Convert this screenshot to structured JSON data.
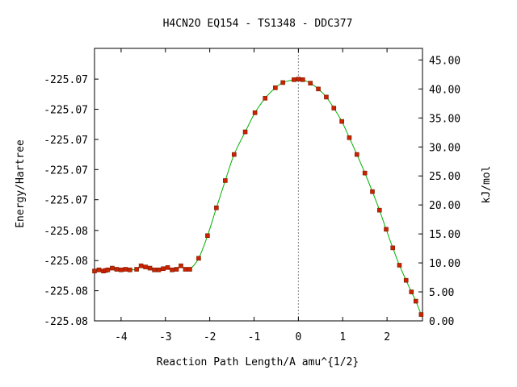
{
  "chart_data": {
    "type": "line",
    "title": "H4CN2O   EQ154 - TS1348 - DDC377",
    "xlabel": "Reaction Path Length/A amu^{1/2}",
    "ylabel_left": "Energy/Hartree",
    "ylabel_right": "kJ/mol",
    "xlim": [
      -4.6,
      2.8
    ],
    "ylim_kj": [
      0,
      47
    ],
    "x_ticks": [
      {
        "value": -4,
        "label": "-4"
      },
      {
        "value": -3,
        "label": "-3"
      },
      {
        "value": -2,
        "label": "-2"
      },
      {
        "value": -1,
        "label": "-1"
      },
      {
        "value": 0,
        "label": "0"
      },
      {
        "value": 1,
        "label": "1"
      },
      {
        "value": 2,
        "label": "2"
      }
    ],
    "left_ticks": [
      {
        "kj": 0.0,
        "label": "-225.08"
      },
      {
        "kj": 5.2,
        "label": "-225.08"
      },
      {
        "kj": 10.4,
        "label": "-225.08"
      },
      {
        "kj": 15.6,
        "label": "-225.08"
      },
      {
        "kj": 20.9,
        "label": "-225.07"
      },
      {
        "kj": 26.1,
        "label": "-225.07"
      },
      {
        "kj": 31.3,
        "label": "-225.07"
      },
      {
        "kj": 36.5,
        "label": "-225.07"
      },
      {
        "kj": 41.7,
        "label": "-225.07"
      }
    ],
    "right_ticks": [
      {
        "kj": 0,
        "label": "0.00"
      },
      {
        "kj": 5,
        "label": "5.00"
      },
      {
        "kj": 10,
        "label": "10.00"
      },
      {
        "kj": 15,
        "label": "15.00"
      },
      {
        "kj": 20,
        "label": "20.00"
      },
      {
        "kj": 25,
        "label": "25.00"
      },
      {
        "kj": 30,
        "label": "30.00"
      },
      {
        "kj": 35,
        "label": "35.00"
      },
      {
        "kj": 40,
        "label": "40.00"
      },
      {
        "kj": 45,
        "label": "45.00"
      }
    ],
    "ts_marker_x": 0,
    "colors": {
      "curve": "#00b000",
      "marker": "#cc2200",
      "ts_line": "#888888",
      "axis": "#000000"
    },
    "series": [
      {
        "points": [
          {
            "x": -4.6,
            "y": 8.6
          },
          {
            "x": -4.5,
            "y": 8.8
          },
          {
            "x": -4.4,
            "y": 8.6
          },
          {
            "x": -4.35,
            "y": 8.7
          },
          {
            "x": -4.3,
            "y": 8.8
          },
          {
            "x": -4.2,
            "y": 9.1
          },
          {
            "x": -4.1,
            "y": 8.9
          },
          {
            "x": -4.0,
            "y": 8.8
          },
          {
            "x": -3.9,
            "y": 8.9
          },
          {
            "x": -3.8,
            "y": 8.8
          },
          {
            "x": -3.65,
            "y": 8.9
          },
          {
            "x": -3.55,
            "y": 9.5
          },
          {
            "x": -3.45,
            "y": 9.3
          },
          {
            "x": -3.35,
            "y": 9.1
          },
          {
            "x": -3.25,
            "y": 8.8
          },
          {
            "x": -3.15,
            "y": 8.8
          },
          {
            "x": -3.05,
            "y": 9.0
          },
          {
            "x": -2.95,
            "y": 9.2
          },
          {
            "x": -2.85,
            "y": 8.8
          },
          {
            "x": -2.75,
            "y": 8.9
          },
          {
            "x": -2.65,
            "y": 9.5
          },
          {
            "x": -2.55,
            "y": 8.9
          },
          {
            "x": -2.45,
            "y": 8.9
          },
          {
            "x": -2.25,
            "y": 10.8
          },
          {
            "x": -2.05,
            "y": 14.7
          },
          {
            "x": -1.85,
            "y": 19.5
          },
          {
            "x": -1.65,
            "y": 24.2
          },
          {
            "x": -1.45,
            "y": 28.7
          },
          {
            "x": -1.2,
            "y": 32.6
          },
          {
            "x": -0.98,
            "y": 35.9
          },
          {
            "x": -0.75,
            "y": 38.4
          },
          {
            "x": -0.52,
            "y": 40.2
          },
          {
            "x": -0.35,
            "y": 41.1
          },
          {
            "x": -0.1,
            "y": 41.6
          },
          {
            "x": 0.0,
            "y": 41.7
          },
          {
            "x": 0.1,
            "y": 41.6
          },
          {
            "x": 0.27,
            "y": 41.0
          },
          {
            "x": 0.45,
            "y": 40.0
          },
          {
            "x": 0.63,
            "y": 38.6
          },
          {
            "x": 0.8,
            "y": 36.7
          },
          {
            "x": 0.98,
            "y": 34.4
          },
          {
            "x": 1.15,
            "y": 31.6
          },
          {
            "x": 1.32,
            "y": 28.7
          },
          {
            "x": 1.5,
            "y": 25.5
          },
          {
            "x": 1.67,
            "y": 22.3
          },
          {
            "x": 1.83,
            "y": 19.1
          },
          {
            "x": 1.98,
            "y": 15.8
          },
          {
            "x": 2.13,
            "y": 12.6
          },
          {
            "x": 2.28,
            "y": 9.6
          },
          {
            "x": 2.43,
            "y": 7.0
          },
          {
            "x": 2.55,
            "y": 5.0
          },
          {
            "x": 2.65,
            "y": 3.4
          },
          {
            "x": 2.77,
            "y": 1.1
          }
        ]
      }
    ]
  }
}
